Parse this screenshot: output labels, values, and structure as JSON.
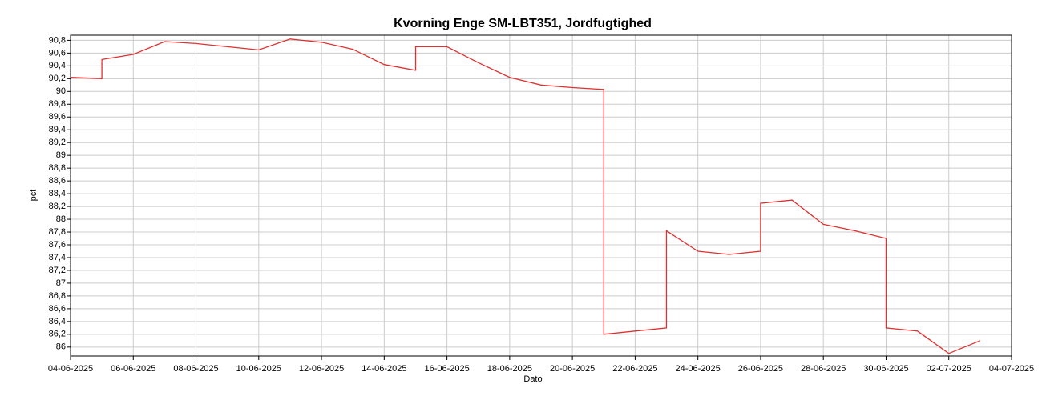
{
  "chart_data": {
    "type": "line",
    "title": "Kvorning Enge SM-LBT351, Jordfugtighed",
    "x_label": "Dato",
    "y_label": "pct",
    "grid": true,
    "xlim": [
      "04-06-2025",
      "04-07-2025"
    ],
    "xticks": [
      "04-06-2025",
      "06-06-2025",
      "08-06-2025",
      "10-06-2025",
      "12-06-2025",
      "14-06-2025",
      "16-06-2025",
      "18-06-2025",
      "20-06-2025",
      "22-06-2025",
      "24-06-2025",
      "26-06-2025",
      "28-06-2025",
      "30-06-2025",
      "02-07-2025",
      "04-07-2025"
    ],
    "ylim": [
      85.86,
      90.88
    ],
    "yticks": [
      86,
      {
        "value": 86.2,
        "label": "86,2"
      },
      {
        "value": 86.4,
        "label": "86,4"
      },
      {
        "value": 86.6,
        "label": "86,6"
      },
      {
        "value": 86.8,
        "label": "86,8"
      },
      87,
      {
        "value": 87.2,
        "label": "87,2"
      },
      {
        "value": 87.4,
        "label": "87,4"
      },
      {
        "value": 87.6,
        "label": "87,6"
      },
      {
        "value": 87.8,
        "label": "87,8"
      },
      88,
      {
        "value": 88.2,
        "label": "88,2"
      },
      {
        "value": 88.4,
        "label": "88,4"
      },
      {
        "value": 88.6,
        "label": "88,6"
      },
      {
        "value": 88.8,
        "label": "88,8"
      },
      89,
      {
        "value": 89.2,
        "label": "89,2"
      },
      {
        "value": 89.4,
        "label": "89,4"
      },
      {
        "value": 89.6,
        "label": "89,6"
      },
      {
        "value": 89.8,
        "label": "89,8"
      },
      90,
      {
        "value": 90.2,
        "label": "90,2"
      },
      {
        "value": 90.4,
        "label": "90,4"
      },
      {
        "value": 90.6,
        "label": "90,6"
      },
      {
        "value": 90.8,
        "label": "90,8"
      }
    ],
    "series": [
      {
        "name": "Jordfugtighed",
        "color": "#e03030",
        "x": [
          "04-06-2025",
          "05-06-2025",
          "05-06-2025",
          "06-06-2025",
          "07-06-2025",
          "08-06-2025",
          "09-06-2025",
          "10-06-2025",
          "11-06-2025",
          "12-06-2025",
          "13-06-2025",
          "14-06-2025",
          "15-06-2025",
          "15-06-2025",
          "16-06-2025",
          "17-06-2025",
          "18-06-2025",
          "19-06-2025",
          "20-06-2025",
          "21-06-2025",
          "21-06-2025",
          "22-06-2025",
          "23-06-2025",
          "23-06-2025",
          "24-06-2025",
          "25-06-2025",
          "26-06-2025",
          "26-06-2025",
          "27-06-2025",
          "28-06-2025",
          "29-06-2025",
          "30-06-2025",
          "30-06-2025",
          "01-07-2025",
          "02-07-2025",
          "03-07-2025"
        ],
        "values": [
          90.22,
          90.2,
          90.5,
          90.58,
          90.78,
          90.75,
          90.7,
          90.65,
          90.82,
          90.77,
          90.66,
          90.42,
          90.33,
          90.7,
          90.7,
          90.45,
          90.22,
          90.1,
          90.06,
          90.03,
          86.2,
          86.25,
          86.3,
          87.82,
          87.5,
          87.45,
          87.5,
          88.25,
          88.3,
          87.92,
          87.82,
          87.7,
          86.3,
          86.25,
          85.9,
          86.1
        ]
      }
    ]
  }
}
